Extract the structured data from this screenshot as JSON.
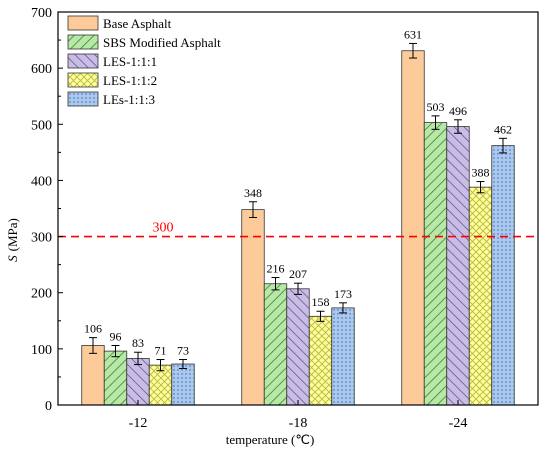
{
  "chart_data": {
    "type": "bar",
    "categories": [
      "-12",
      "-18",
      "-24"
    ],
    "xlabel": "temperature (℃)",
    "ylabel_symbol": "S",
    "ylabel_unit": "(MPa)",
    "ylim": [
      0,
      700
    ],
    "yticks": [
      0,
      100,
      200,
      300,
      400,
      500,
      600,
      700
    ],
    "reference_line": {
      "value": 300,
      "label": "300",
      "color": "#ff0000"
    },
    "legend_position": "top-left",
    "grid": false,
    "series": [
      {
        "name": "Base Asphalt",
        "values": [
          106,
          348,
          631
        ],
        "errors": [
          14,
          14,
          13
        ],
        "color": "#fdcb9a",
        "pattern": "solid"
      },
      {
        "name": "SBS Modified Asphalt",
        "values": [
          96,
          216,
          503
        ],
        "errors": [
          10,
          11,
          12
        ],
        "color": "#b9e7a8",
        "pattern": "diag-right"
      },
      {
        "name": "LES-1:1:1",
        "values": [
          83,
          207,
          496
        ],
        "errors": [
          11,
          10,
          12
        ],
        "color": "#c9bde6",
        "pattern": "diag-left"
      },
      {
        "name": "LES-1:1:2",
        "values": [
          71,
          158,
          388
        ],
        "errors": [
          10,
          9,
          10
        ],
        "color": "#ffff9e",
        "pattern": "cross"
      },
      {
        "name": "LEs-1:1:3",
        "values": [
          73,
          173,
          462
        ],
        "errors": [
          8,
          9,
          13
        ],
        "color": "#a9c9f0",
        "pattern": "dots"
      }
    ]
  }
}
